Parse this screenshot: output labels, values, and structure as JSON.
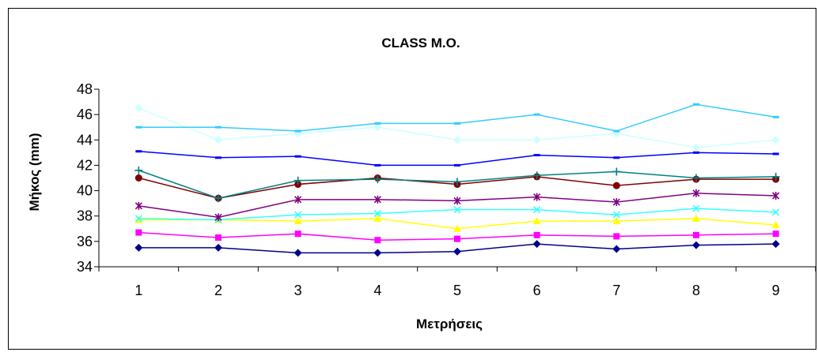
{
  "chart_data": {
    "type": "line",
    "title": "CLASS M.O.",
    "xlabel": "Μετρήσεις",
    "ylabel": "Μήκος (mm)",
    "categories": [
      "1",
      "2",
      "3",
      "4",
      "5",
      "6",
      "7",
      "8",
      "9"
    ],
    "ylim": [
      34,
      48
    ],
    "yticks": [
      34,
      36,
      38,
      40,
      42,
      44,
      46,
      48
    ],
    "grid": false,
    "legend": "none",
    "series": [
      {
        "color": "#00008b",
        "marker": "diamond",
        "values": [
          35.5,
          35.5,
          35.1,
          35.1,
          35.2,
          35.8,
          35.4,
          35.7,
          35.8
        ]
      },
      {
        "color": "#ff00ff",
        "marker": "square",
        "values": [
          36.7,
          36.3,
          36.6,
          36.1,
          36.2,
          36.5,
          36.4,
          36.5,
          36.6
        ]
      },
      {
        "color": "#ffff00",
        "marker": "triangle",
        "values": [
          37.7,
          37.7,
          37.6,
          37.8,
          37.0,
          37.6,
          37.6,
          37.8,
          37.3
        ]
      },
      {
        "color": "#33ffff",
        "marker": "x",
        "values": [
          37.8,
          37.7,
          38.1,
          38.2,
          38.5,
          38.5,
          38.1,
          38.6,
          38.3
        ]
      },
      {
        "color": "#800080",
        "marker": "star",
        "values": [
          38.8,
          37.9,
          39.3,
          39.3,
          39.2,
          39.5,
          39.1,
          39.8,
          39.6
        ]
      },
      {
        "color": "#800000",
        "marker": "circle",
        "values": [
          41.0,
          39.4,
          40.5,
          41.0,
          40.5,
          41.1,
          40.4,
          40.9,
          40.9
        ]
      },
      {
        "color": "#008080",
        "marker": "plus",
        "values": [
          41.6,
          39.4,
          40.8,
          40.9,
          40.7,
          41.2,
          41.5,
          41.0,
          41.1
        ]
      },
      {
        "color": "#0000ff",
        "marker": "dash",
        "values": [
          43.1,
          42.6,
          42.7,
          42.0,
          42.0,
          42.8,
          42.6,
          43.0,
          42.9
        ]
      },
      {
        "color": "#ccffff",
        "marker": "diamond",
        "values": [
          46.5,
          44.0,
          44.5,
          45.0,
          44.0,
          44.0,
          44.5,
          43.4,
          44.0
        ]
      },
      {
        "color": "#33ccff",
        "marker": "dash",
        "values": [
          45.0,
          45.0,
          44.7,
          45.3,
          45.3,
          46.0,
          44.7,
          46.8,
          45.8
        ]
      }
    ]
  }
}
